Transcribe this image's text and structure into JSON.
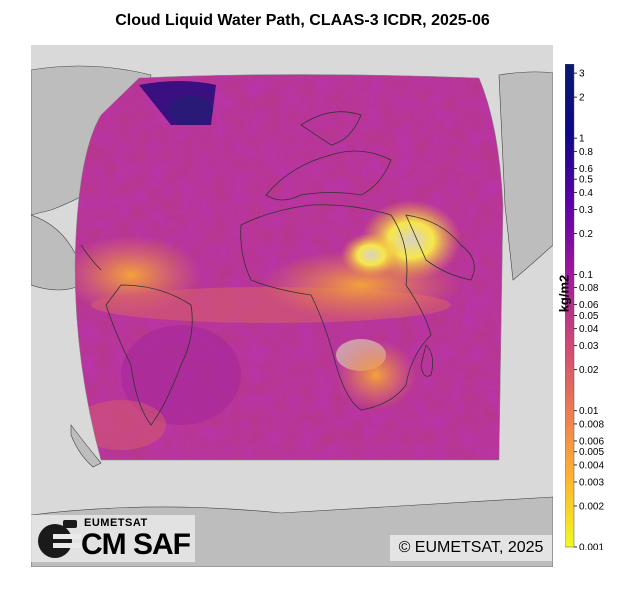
{
  "title": "Cloud Liquid Water Path, CLAAS-3 ICDR, 2025-06",
  "colorbar": {
    "label": "kg/m2",
    "scale": "log",
    "range": [
      0.001,
      3.5
    ],
    "colormap": [
      "#f0f921",
      "#fdb42f",
      "#ed7953",
      "#cc4778",
      "#9c179e",
      "#5c01a6",
      "#0d0887",
      "#0a1a6e"
    ],
    "ticks": [
      "3",
      "2",
      "1",
      "0.8",
      "0.6",
      "0.5",
      "0.4",
      "0.3",
      "0.2",
      "0.1",
      "0.08",
      "0.06",
      "0.05",
      "0.04",
      "0.03",
      "0.02",
      "0.01",
      "0.008",
      "0.006",
      "0.005",
      "0.004",
      "0.003",
      "0.002",
      "0.001"
    ]
  },
  "copyright": "© EUMETSAT, 2025",
  "logo": {
    "org": "EUMETSAT",
    "name": "CM SAF"
  },
  "colors": {
    "land": "#bdbdbd",
    "ocean": "#d9d9d9",
    "coast": "#333333"
  }
}
